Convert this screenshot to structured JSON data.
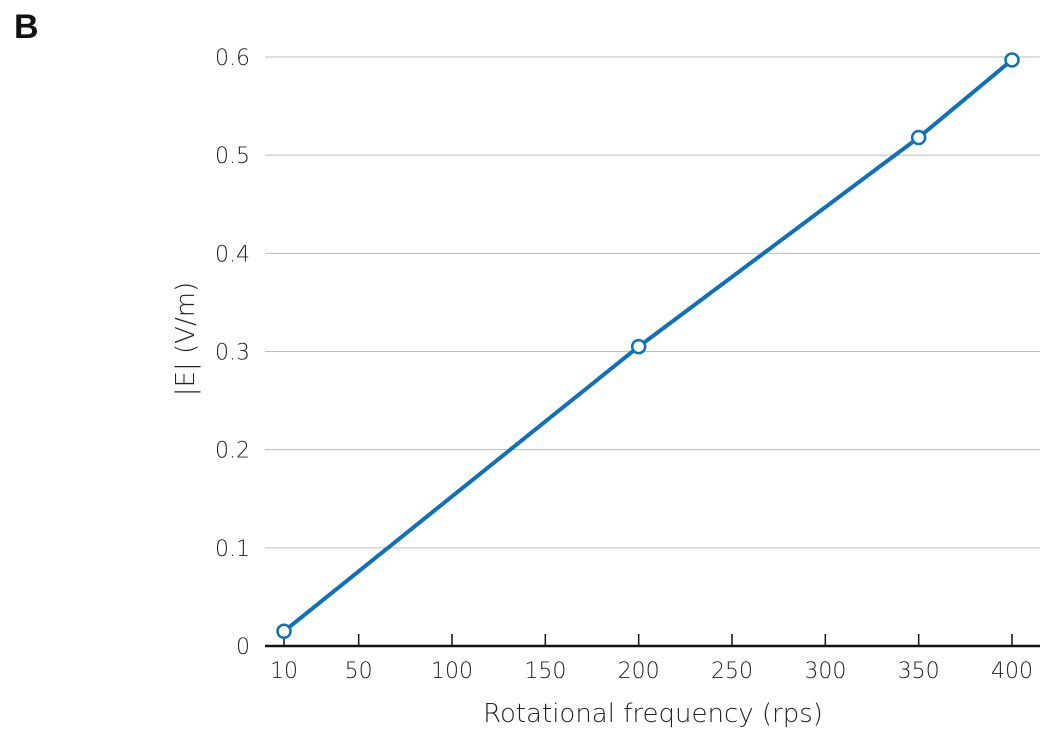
{
  "panel_label": "B",
  "chart_data": {
    "type": "line",
    "title": "",
    "xlabel": "Rotational frequency (rps)",
    "ylabel": "|E| (V/m)",
    "x": [
      10,
      200,
      350,
      400
    ],
    "series": [
      {
        "values": [
          0.015,
          0.305,
          0.518,
          0.597
        ]
      }
    ],
    "xticks": [
      10,
      50,
      100,
      150,
      200,
      250,
      300,
      350,
      400
    ],
    "yticks": [
      0,
      0.1,
      0.2,
      0.3,
      0.4,
      0.5,
      0.6
    ],
    "xtick_labels": [
      "10",
      "50",
      "100",
      "150",
      "200",
      "250",
      "300",
      "350",
      "400"
    ],
    "ytick_labels": [
      "0",
      "0.1",
      "0.2",
      "0.3",
      "0.4",
      "0.5",
      "0.6"
    ],
    "xlim": [
      10,
      400
    ],
    "ylim": [
      0,
      0.6
    ],
    "grid": "horizontal",
    "line_color": "#1070b8",
    "grid_color": "#bdbdbd"
  }
}
